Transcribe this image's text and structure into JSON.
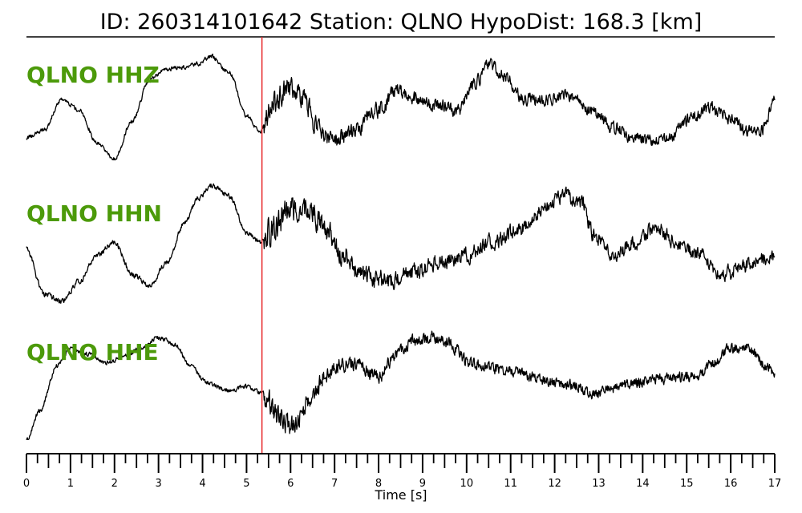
{
  "header": {
    "title": "ID: 260314101642   Station: QLNO   HypoDist:   168.3 [km]"
  },
  "colors": {
    "trace": "#000000",
    "label": "#4c9a0a",
    "pick": "#e8282a",
    "axis": "#000000"
  },
  "chart_data": {
    "type": "line",
    "title": "ID: 260314101642   Station: QLNO   HypoDist:   168.3 [km]",
    "xlabel": "Time [s]",
    "ylabel": "",
    "xlim": [
      0,
      17
    ],
    "x_ticks": [
      0,
      1,
      2,
      3,
      4,
      5,
      6,
      7,
      8,
      9,
      10,
      11,
      12,
      13,
      14,
      15,
      16,
      17
    ],
    "x_tick_labels": [
      "0",
      "1",
      "2",
      "3",
      "4",
      "5",
      "6",
      "7",
      "8",
      "9",
      "10",
      "11",
      "12",
      "13",
      "14",
      "15",
      "16",
      "17"
    ],
    "minor_tick_step": 0.25,
    "grid": false,
    "legend": "none",
    "pick_time": 5.35,
    "series": [
      {
        "name": "QLNO HHZ",
        "noise_start": 5.4,
        "noise_pre": 0.03,
        "noise_post": 0.14,
        "points": [
          [
            0,
            0.25
          ],
          [
            0.4,
            0.32
          ],
          [
            0.8,
            0.6
          ],
          [
            1.2,
            0.5
          ],
          [
            1.6,
            0.2
          ],
          [
            2.0,
            0.05
          ],
          [
            2.4,
            0.4
          ],
          [
            2.8,
            0.78
          ],
          [
            3.2,
            0.88
          ],
          [
            3.6,
            0.9
          ],
          [
            3.9,
            0.93
          ],
          [
            4.2,
            1.0
          ],
          [
            4.6,
            0.85
          ],
          [
            5.0,
            0.45
          ],
          [
            5.3,
            0.3
          ],
          [
            5.6,
            0.55
          ],
          [
            6.0,
            0.72
          ],
          [
            6.3,
            0.6
          ],
          [
            6.6,
            0.35
          ],
          [
            7.0,
            0.22
          ],
          [
            7.4,
            0.3
          ],
          [
            8.0,
            0.5
          ],
          [
            8.4,
            0.68
          ],
          [
            8.8,
            0.62
          ],
          [
            9.3,
            0.55
          ],
          [
            9.8,
            0.5
          ],
          [
            10.2,
            0.75
          ],
          [
            10.5,
            0.92
          ],
          [
            10.9,
            0.8
          ],
          [
            11.3,
            0.6
          ],
          [
            11.8,
            0.6
          ],
          [
            12.3,
            0.65
          ],
          [
            12.8,
            0.5
          ],
          [
            13.3,
            0.35
          ],
          [
            13.8,
            0.25
          ],
          [
            14.2,
            0.22
          ],
          [
            14.6,
            0.25
          ],
          [
            15.1,
            0.42
          ],
          [
            15.5,
            0.52
          ],
          [
            16.0,
            0.44
          ],
          [
            16.4,
            0.3
          ],
          [
            16.7,
            0.32
          ],
          [
            17.0,
            0.6
          ]
        ]
      },
      {
        "name": "QLNO HHN",
        "noise_start": 5.4,
        "noise_pre": 0.03,
        "noise_post": 0.14,
        "points": [
          [
            0,
            0.5
          ],
          [
            0.4,
            0.15
          ],
          [
            0.8,
            0.1
          ],
          [
            1.2,
            0.25
          ],
          [
            1.6,
            0.45
          ],
          [
            2.0,
            0.55
          ],
          [
            2.4,
            0.3
          ],
          [
            2.8,
            0.22
          ],
          [
            3.2,
            0.4
          ],
          [
            3.6,
            0.7
          ],
          [
            3.9,
            0.88
          ],
          [
            4.2,
            0.98
          ],
          [
            4.6,
            0.9
          ],
          [
            5.0,
            0.62
          ],
          [
            5.3,
            0.55
          ],
          [
            5.6,
            0.62
          ],
          [
            6.0,
            0.8
          ],
          [
            6.4,
            0.8
          ],
          [
            6.8,
            0.65
          ],
          [
            7.2,
            0.45
          ],
          [
            7.6,
            0.3
          ],
          [
            8.2,
            0.25
          ],
          [
            8.8,
            0.32
          ],
          [
            9.4,
            0.4
          ],
          [
            10.0,
            0.45
          ],
          [
            10.6,
            0.55
          ],
          [
            11.2,
            0.65
          ],
          [
            11.8,
            0.8
          ],
          [
            12.2,
            0.9
          ],
          [
            12.6,
            0.85
          ],
          [
            12.9,
            0.6
          ],
          [
            13.3,
            0.45
          ],
          [
            13.8,
            0.55
          ],
          [
            14.3,
            0.65
          ],
          [
            14.8,
            0.55
          ],
          [
            15.3,
            0.45
          ],
          [
            15.8,
            0.3
          ],
          [
            16.2,
            0.35
          ],
          [
            16.6,
            0.4
          ],
          [
            17.0,
            0.45
          ]
        ]
      },
      {
        "name": "QLNO HHE",
        "noise_start": 5.4,
        "noise_pre": 0.03,
        "noise_post": 0.12,
        "points": [
          [
            0,
            0.05
          ],
          [
            0.3,
            0.3
          ],
          [
            0.7,
            0.7
          ],
          [
            1.0,
            0.85
          ],
          [
            1.4,
            0.8
          ],
          [
            1.8,
            0.72
          ],
          [
            2.2,
            0.78
          ],
          [
            2.6,
            0.85
          ],
          [
            3.0,
            0.95
          ],
          [
            3.4,
            0.88
          ],
          [
            3.7,
            0.7
          ],
          [
            4.1,
            0.55
          ],
          [
            4.6,
            0.48
          ],
          [
            5.0,
            0.52
          ],
          [
            5.4,
            0.45
          ],
          [
            5.7,
            0.25
          ],
          [
            6.0,
            0.15
          ],
          [
            6.4,
            0.35
          ],
          [
            6.8,
            0.62
          ],
          [
            7.2,
            0.72
          ],
          [
            7.6,
            0.7
          ],
          [
            8.0,
            0.6
          ],
          [
            8.4,
            0.8
          ],
          [
            8.8,
            0.92
          ],
          [
            9.2,
            0.95
          ],
          [
            9.6,
            0.9
          ],
          [
            10.0,
            0.75
          ],
          [
            10.5,
            0.68
          ],
          [
            11.0,
            0.65
          ],
          [
            11.5,
            0.6
          ],
          [
            12.0,
            0.55
          ],
          [
            12.5,
            0.52
          ],
          [
            12.9,
            0.45
          ],
          [
            13.3,
            0.5
          ],
          [
            13.8,
            0.55
          ],
          [
            14.3,
            0.58
          ],
          [
            14.8,
            0.6
          ],
          [
            15.2,
            0.6
          ],
          [
            15.6,
            0.72
          ],
          [
            16.0,
            0.85
          ],
          [
            16.4,
            0.85
          ],
          [
            16.8,
            0.7
          ],
          [
            17.0,
            0.65
          ]
        ]
      }
    ]
  }
}
